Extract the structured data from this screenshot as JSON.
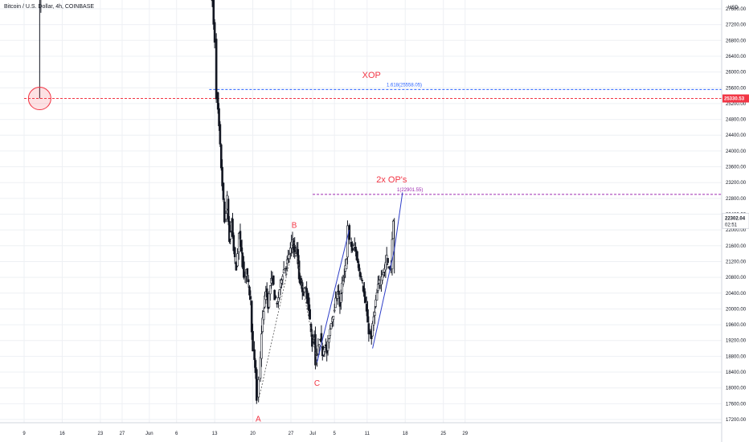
{
  "symbol": {
    "label": "Bitcoin / U.S. Dollar, 4h, COINBASE"
  },
  "colors": {
    "up": "#131722",
    "down": "#131722",
    "grid": "#eef0f4",
    "fib_blue": "#2962ff",
    "fib_purple": "#9c27b0",
    "target_red": "#f23645",
    "channel": "#2e3ec8",
    "zigzag": "#555555",
    "last_price_bg": "#131722"
  },
  "chart_data": {
    "type": "candlestick",
    "y_axis": {
      "unit": "USD",
      "ylim": [
        17000,
        28000
      ],
      "ticks": [
        27600,
        27200,
        26800,
        26400,
        26000,
        25600,
        25200,
        24800,
        24400,
        24000,
        23600,
        23200,
        22800,
        22400,
        22000,
        21600,
        21200,
        20800,
        20400,
        20000,
        19600,
        19200,
        18800,
        18400,
        18000,
        17600,
        17200
      ],
      "tick_labels": [
        "27600.00",
        "27200.00",
        "26800.00",
        "26400.00",
        "26000.00",
        "25600.00",
        "25200.00",
        "24800.00",
        "24400.00",
        "24000.00",
        "23600.00",
        "23200.00",
        "22800.00",
        "22400.00",
        "22000.00",
        "21600.00",
        "21200.00",
        "20800.00",
        "20400.00",
        "20000.00",
        "19600.00",
        "19200.00",
        "18800.00",
        "18400.00",
        "18000.00",
        "17600.00",
        "17200.00"
      ]
    },
    "x_axis": {
      "xlim": [
        -9,
        83
      ],
      "ticks": [
        {
          "day": 0,
          "label": "9"
        },
        {
          "day": 7,
          "label": "16"
        },
        {
          "day": 14,
          "label": "23"
        },
        {
          "day": 18,
          "label": "27"
        },
        {
          "day": 23,
          "label": "Jun"
        },
        {
          "day": 28,
          "label": "6"
        },
        {
          "day": 35,
          "label": "13"
        },
        {
          "day": 42,
          "label": "20"
        },
        {
          "day": 49,
          "label": "27"
        },
        {
          "day": 53,
          "label": "Jul"
        },
        {
          "day": 57,
          "label": "5"
        },
        {
          "day": 63,
          "label": "11"
        },
        {
          "day": 70,
          "label": "18"
        },
        {
          "day": 77,
          "label": "25"
        },
        {
          "day": 81,
          "label": "29"
        }
      ]
    },
    "price_path": [
      [
        1.8,
        28300
      ],
      [
        2.0,
        27600
      ],
      [
        2.05,
        28000
      ],
      [
        34.3,
        28400
      ],
      [
        34.8,
        27800
      ],
      [
        35.0,
        27200
      ],
      [
        35.3,
        26800
      ],
      [
        35.6,
        25400
      ],
      [
        36.0,
        24600
      ],
      [
        36.4,
        23600
      ],
      [
        36.8,
        22700
      ],
      [
        37.1,
        22200
      ],
      [
        37.5,
        22800
      ],
      [
        37.9,
        21700
      ],
      [
        38.3,
        22200
      ],
      [
        38.7,
        21500
      ],
      [
        39.2,
        21000
      ],
      [
        39.7,
        21900
      ],
      [
        40.1,
        21500
      ],
      [
        40.6,
        20800
      ],
      [
        41.0,
        21000
      ],
      [
        41.4,
        20600
      ],
      [
        41.8,
        20200
      ],
      [
        42.0,
        19500
      ],
      [
        42.3,
        18900
      ],
      [
        42.7,
        18400
      ],
      [
        43.05,
        17700
      ],
      [
        43.4,
        18200
      ],
      [
        43.8,
        19400
      ],
      [
        44.2,
        20000
      ],
      [
        44.6,
        20500
      ],
      [
        45.0,
        20100
      ],
      [
        45.4,
        20600
      ],
      [
        45.8,
        20800
      ],
      [
        46.2,
        20300
      ],
      [
        46.7,
        20100
      ],
      [
        47.1,
        20500
      ],
      [
        47.5,
        20800
      ],
      [
        47.9,
        21000
      ],
      [
        48.3,
        21100
      ],
      [
        48.7,
        21300
      ],
      [
        49.1,
        21500
      ],
      [
        49.5,
        21750
      ],
      [
        49.9,
        21400
      ],
      [
        50.3,
        21500
      ],
      [
        50.7,
        20800
      ],
      [
        51.1,
        20600
      ],
      [
        51.5,
        20400
      ],
      [
        51.9,
        20500
      ],
      [
        52.3,
        20200
      ],
      [
        52.7,
        19700
      ],
      [
        53.1,
        19100
      ],
      [
        53.5,
        19300
      ],
      [
        53.8,
        18650
      ],
      [
        54.2,
        19000
      ],
      [
        54.6,
        19300
      ],
      [
        55.0,
        18900
      ],
      [
        55.4,
        19100
      ],
      [
        55.8,
        18900
      ],
      [
        56.2,
        19300
      ],
      [
        56.6,
        19700
      ],
      [
        57.0,
        19900
      ],
      [
        57.4,
        20200
      ],
      [
        57.8,
        20500
      ],
      [
        58.2,
        20100
      ],
      [
        58.6,
        20600
      ],
      [
        59.0,
        20900
      ],
      [
        59.4,
        21300
      ],
      [
        59.75,
        22050
      ],
      [
        60.1,
        21700
      ],
      [
        60.5,
        21500
      ],
      [
        60.9,
        21600
      ],
      [
        61.3,
        21300
      ],
      [
        61.7,
        21000
      ],
      [
        62.1,
        20800
      ],
      [
        62.5,
        20500
      ],
      [
        62.9,
        20100
      ],
      [
        63.3,
        19700
      ],
      [
        63.6,
        19400
      ],
      [
        64.0,
        19300
      ],
      [
        64.4,
        19800
      ],
      [
        64.8,
        20200
      ],
      [
        65.2,
        20600
      ],
      [
        65.6,
        20700
      ],
      [
        66.0,
        20900
      ],
      [
        66.4,
        21000
      ],
      [
        66.8,
        21300
      ],
      [
        67.2,
        21000
      ],
      [
        67.6,
        21100
      ],
      [
        68.0,
        22302
      ]
    ],
    "price_band": 180,
    "last_price": 22302.04,
    "last_price_label": "22302.04",
    "countdown_label": "02:51",
    "levels": [
      {
        "name": "xop",
        "price": 25558.05,
        "label": "1.618(25558.05)",
        "from_day": 34,
        "color": "fib_blue"
      },
      {
        "name": "double-op",
        "price": 22901.55,
        "label": "1(22901.55)",
        "from_day": 53,
        "color": "fib_purple"
      },
      {
        "name": "marked-level",
        "price": 25330.53,
        "label": "25330.53",
        "from_day": 0,
        "color": "target_red"
      }
    ],
    "circle_marker": {
      "day": 0.2,
      "price": 25330
    },
    "wick": {
      "day": 0.2,
      "top": 28400,
      "bottom": 25330
    },
    "zigzag": [
      {
        "day": 43.05,
        "price": 17680
      },
      {
        "day": 49.6,
        "price": 21700
      },
      {
        "day": 53.8,
        "price": 18650
      }
    ],
    "channels": [
      {
        "name": "channel-1",
        "lower": [
          [
            53.8,
            18650
          ],
          [
            59.7,
            22000
          ]
        ],
        "upper_start": [
          59.7,
          22000
        ]
      },
      {
        "name": "channel-2",
        "lower": [
          [
            64.0,
            19000
          ],
          [
            68.0,
            21500
          ]
        ],
        "upper_to": [
          69.5,
          22950
        ]
      }
    ],
    "annotations": [
      {
        "name": "wave-a-label",
        "text": "A",
        "day": 43.0,
        "price": 17150
      },
      {
        "name": "wave-b-label",
        "text": "B",
        "day": 49.6,
        "price": 22050
      },
      {
        "name": "wave-c-label",
        "text": "C",
        "day": 53.8,
        "price": 18050
      },
      {
        "name": "xop-label",
        "text": "XOP",
        "day": 63.8,
        "price": 25850
      },
      {
        "name": "double-op-label",
        "text": "2x OP's",
        "day": 67.5,
        "price": 23200
      }
    ]
  }
}
